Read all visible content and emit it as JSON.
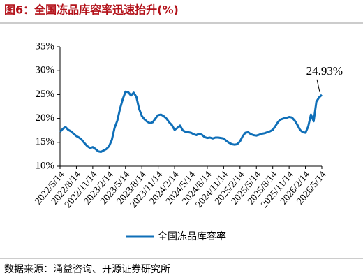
{
  "chart_data": {
    "type": "line",
    "title": "图6：全国冻品库容率迅速抬升(%)",
    "source": "数据来源：涌益咨询、开源证券研究所",
    "categories": [
      "2022/5/14",
      null,
      null,
      null,
      null,
      null,
      "2022/8/14",
      null,
      null,
      null,
      null,
      null,
      "2022/11/14",
      null,
      null,
      null,
      null,
      null,
      "2023/2/14",
      null,
      null,
      null,
      null,
      null,
      "2023/5/14",
      null,
      null,
      null,
      null,
      null,
      "2023/8/14",
      null,
      null,
      null,
      null,
      null,
      "2023/11/14",
      null,
      null,
      null,
      null,
      null,
      "2024/2/14",
      null,
      null,
      null,
      null,
      null,
      "2024/5/14",
      null,
      null,
      null,
      null,
      null,
      "2024/8/14",
      null,
      null,
      null,
      null,
      null,
      "2024/11/14",
      null,
      null,
      null,
      null,
      null,
      "2025/2/14",
      null,
      null,
      null,
      null,
      null,
      "2025/5/14",
      null,
      null,
      null,
      null,
      null,
      "2025/8/14",
      null,
      null,
      null,
      null,
      null,
      "2025/11/14",
      null,
      null,
      null,
      null,
      null,
      "2026/2/14",
      null,
      null,
      null,
      null,
      null,
      "2026/5/14"
    ],
    "series": [
      {
        "name": "全国冻品库容率",
        "color": "#0f6fb8",
        "values": [
          17.2,
          17.8,
          18.2,
          17.6,
          17.3,
          16.8,
          16.3,
          16.0,
          15.5,
          14.8,
          14.2,
          13.8,
          14.0,
          13.6,
          13.1,
          13.0,
          13.3,
          13.6,
          14.2,
          15.5,
          18.0,
          19.5,
          22.0,
          24.0,
          25.6,
          25.5,
          24.8,
          25.4,
          24.5,
          22.0,
          20.5,
          19.8,
          19.3,
          19.0,
          19.2,
          20.0,
          20.7,
          20.8,
          20.5,
          20.0,
          19.2,
          18.6,
          17.6,
          18.0,
          18.5,
          17.5,
          17.2,
          17.1,
          17.0,
          16.7,
          16.5,
          16.8,
          16.6,
          16.1,
          15.9,
          16.0,
          15.8,
          16.0,
          16.0,
          15.9,
          15.8,
          15.3,
          14.9,
          14.6,
          14.5,
          14.6,
          15.2,
          16.3,
          17.0,
          17.1,
          16.7,
          16.5,
          16.4,
          16.6,
          16.8,
          16.9,
          17.1,
          17.3,
          17.6,
          18.4,
          19.3,
          19.8,
          20.0,
          20.1,
          20.3,
          20.2,
          19.6,
          18.7,
          17.6,
          17.1,
          17.0,
          18.3,
          20.8,
          19.4,
          23.5,
          24.4,
          24.93
        ],
        "value_labels": [
          null,
          null,
          null,
          null,
          null,
          null,
          null,
          null,
          null,
          null,
          null,
          null,
          null,
          null,
          null,
          null,
          null,
          null,
          null,
          null,
          null,
          null,
          null,
          null,
          null,
          null,
          null,
          null,
          null,
          null,
          null,
          null,
          null,
          null,
          null,
          null,
          null,
          null,
          null,
          null,
          null,
          null,
          null,
          null,
          null,
          null,
          null,
          null,
          null,
          null,
          null,
          null,
          null,
          null,
          null,
          null,
          null,
          null,
          null,
          null,
          null,
          null,
          null,
          null,
          null,
          null,
          null,
          null,
          null,
          null,
          null,
          null,
          null,
          null,
          null,
          null,
          null,
          null,
          null,
          null,
          null,
          null,
          null,
          null,
          null,
          null,
          null,
          null,
          null,
          null,
          null,
          null,
          null,
          null,
          null,
          null,
          "24.93%"
        ]
      }
    ],
    "ylim": [
      10,
      35
    ],
    "yticks": [
      {
        "value": 10,
        "label": "10%"
      },
      {
        "value": 15,
        "label": "15%"
      },
      {
        "value": 20,
        "label": "20%"
      },
      {
        "value": 25,
        "label": "25%"
      },
      {
        "value": 30,
        "label": "30%"
      },
      {
        "value": 35,
        "label": "35%"
      }
    ],
    "grid": false,
    "legend": "bottom"
  }
}
